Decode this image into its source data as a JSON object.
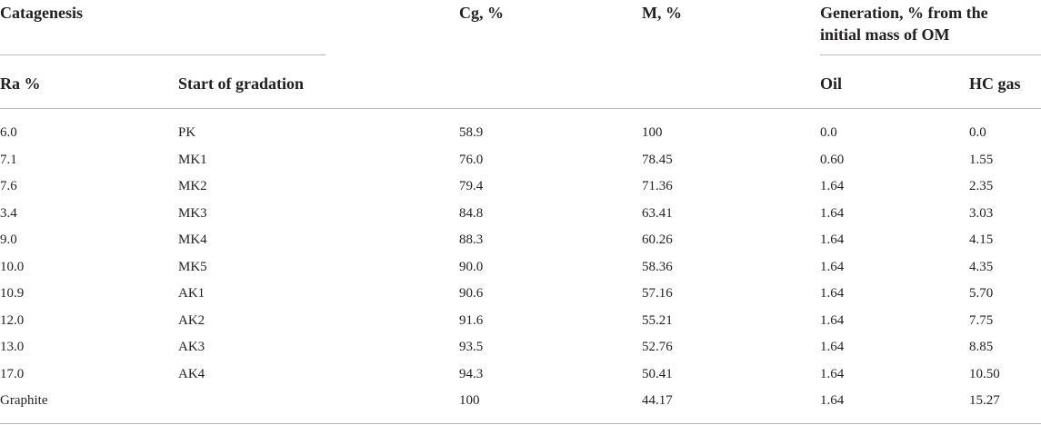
{
  "header": {
    "group_catagenesis": "Catagenesis",
    "cg": "Cg, %",
    "m": "M, %",
    "generation_line1": "Generation, % from the",
    "generation_line2": "initial mass of OM",
    "ra": "Ra %",
    "start_of_gradation": "Start of gradation",
    "oil": "Oil",
    "hc_gas": "HC gas"
  },
  "rows": [
    [
      "6.0",
      "PK",
      "58.9",
      "100",
      "0.0",
      "0.0"
    ],
    [
      "7.1",
      "MK1",
      "76.0",
      "78.45",
      "0.60",
      "1.55"
    ],
    [
      "7.6",
      "MK2",
      "79.4",
      "71.36",
      "1.64",
      "2.35"
    ],
    [
      "3.4",
      "MK3",
      "84.8",
      "63.41",
      "1.64",
      "3.03"
    ],
    [
      "9.0",
      "MK4",
      "88.3",
      "60.26",
      "1.64",
      "4.15"
    ],
    [
      "10.0",
      "MK5",
      "90.0",
      "58.36",
      "1.64",
      "4.35"
    ],
    [
      "10.9",
      "AK1",
      "90.6",
      "57.16",
      "1.64",
      "5.70"
    ],
    [
      "12.0",
      "AK2",
      "91.6",
      "55.21",
      "1.64",
      "7.75"
    ],
    [
      "13.0",
      "AK3",
      "93.5",
      "52.76",
      "1.64",
      "8.85"
    ],
    [
      "17.0",
      "AK4",
      "94.3",
      "50.41",
      "1.64",
      "10.50"
    ],
    [
      "Graphite",
      "",
      "100",
      "44.17",
      "1.64",
      "15.27"
    ]
  ]
}
